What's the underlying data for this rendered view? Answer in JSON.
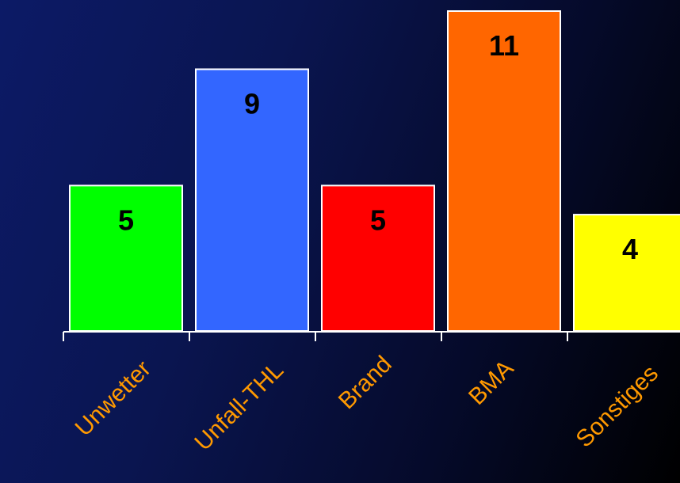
{
  "chart_data": {
    "type": "bar",
    "categories": [
      "Unwetter",
      "Unfall-THL",
      "Brand",
      "BMA",
      "Sonstiges"
    ],
    "values": [
      5,
      9,
      5,
      11,
      4
    ],
    "data_labels": [
      "5",
      "9",
      "5",
      "11",
      "4"
    ],
    "bar_colors": [
      "#00ff00",
      "#3366ff",
      "#ff0000",
      "#ff6600",
      "#ffff00"
    ],
    "label_color": "#ff9900",
    "value_label_color": "#000000",
    "bar_outline_color": "#ffffff",
    "ylim": [
      0,
      11
    ],
    "grid": false,
    "legend": "none"
  }
}
